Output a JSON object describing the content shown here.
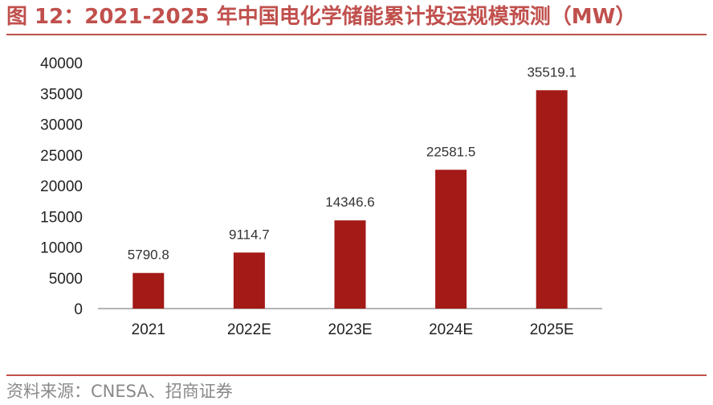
{
  "header": {
    "title": "图 12：2021-2025 年中国电化学储能累计投运规模预测（MW）"
  },
  "footer": {
    "source": "资料来源：CNESA、招商证券"
  },
  "colors": {
    "accent": "#c0504d",
    "bar": "#a31a17"
  },
  "chart_data": {
    "type": "bar",
    "title": "2021-2025 年中国电化学储能累计投运规模预测（MW）",
    "xlabel": "",
    "ylabel": "",
    "categories": [
      "2021",
      "2022E",
      "2023E",
      "2024E",
      "2025E"
    ],
    "values": [
      5790.8,
      9114.7,
      14346.6,
      22581.5,
      35519.1
    ],
    "value_labels": [
      "5790.8",
      "9114.7",
      "14346.6",
      "22581.5",
      "35519.1"
    ],
    "ylim": [
      0,
      40000
    ],
    "yticks": [
      "0",
      "5000",
      "10000",
      "15000",
      "20000",
      "25000",
      "30000",
      "35000",
      "40000"
    ],
    "grid": false,
    "legend": "none"
  }
}
